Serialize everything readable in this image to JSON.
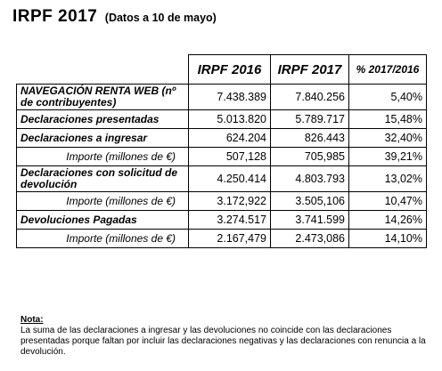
{
  "title": {
    "main": "IRPF 2017",
    "sub": "(Datos a 10 de mayo)"
  },
  "table": {
    "headers": [
      "IRPF 2016",
      "IRPF 2017",
      "% 2017/2016"
    ],
    "rows": [
      {
        "label": "NAVEGACIÓN RENTA WEB (nº de contribuyentes)",
        "v2016": "7.438.389",
        "v2017": "7.840.256",
        "pct": "5,40%"
      },
      {
        "label": "Declaraciones presentadas",
        "v2016": "5.013.820",
        "v2017": "5.789.717",
        "pct": "15,48%"
      },
      {
        "label": "Declaraciones a ingresar",
        "v2016": "624.204",
        "v2017": "826.443",
        "pct": "32,40%"
      },
      {
        "label": "Importe (millones de €)",
        "v2016": "507,128",
        "v2017": "705,985",
        "pct": "39,21%"
      },
      {
        "label": "Declaraciones con solicitud de devolución",
        "v2016": "4.250.414",
        "v2017": "4.803.793",
        "pct": "13,02%"
      },
      {
        "label": "Importe (millones de €)",
        "v2016": "3.172,922",
        "v2017": "3.505,106",
        "pct": "10,47%"
      },
      {
        "label": "Devoluciones Pagadas",
        "v2016": "3.274.517",
        "v2017": "3.741.599",
        "pct": "14,26%"
      },
      {
        "label": "Importe (millones de €)",
        "v2016": "2.167,479",
        "v2017": "2.473,086",
        "pct": "14,10%"
      }
    ]
  },
  "note": {
    "title": "Nota:",
    "text": "La suma de las declaraciones a ingresar y las devoluciones no coincide con las declaraciones presentadas porque faltan por incluir las declaraciones negativas y las declaraciones con renuncia  a la devolución."
  }
}
